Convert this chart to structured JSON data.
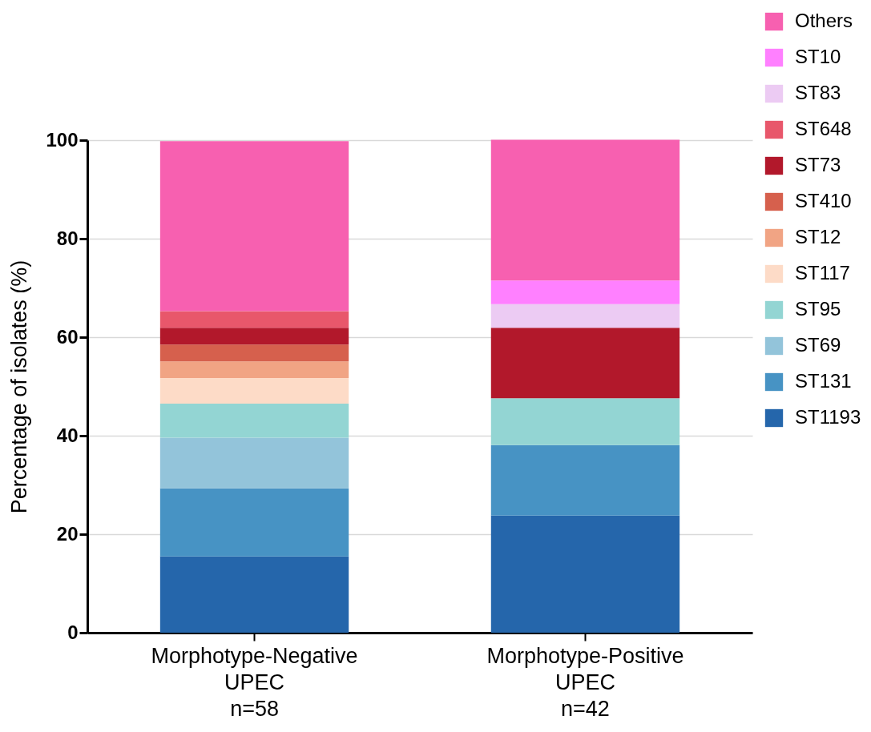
{
  "chart_data": {
    "type": "bar",
    "stacked": true,
    "ylabel": "Percentage of isolates (%)",
    "categories": [
      "Morphotype-Negative\nUPEC\nn=58",
      "Morphotype-Positive\nUPEC\nn=42"
    ],
    "ylim": [
      0,
      100
    ],
    "yticks": [
      0,
      20,
      40,
      60,
      80,
      100
    ],
    "grid": "y",
    "legend": "top right",
    "series": [
      {
        "name": "ST1193",
        "color": "#2566ab",
        "values": [
          15.5,
          23.8
        ]
      },
      {
        "name": "ST131",
        "color": "#4793c4",
        "values": [
          13.8,
          14.3
        ]
      },
      {
        "name": "ST69",
        "color": "#93c4da",
        "values": [
          10.3,
          0
        ]
      },
      {
        "name": "ST95",
        "color": "#93d5d3",
        "values": [
          6.9,
          9.5
        ]
      },
      {
        "name": "ST117",
        "color": "#fddbc7",
        "values": [
          5.2,
          0
        ]
      },
      {
        "name": "ST12",
        "color": "#f1a484",
        "values": [
          3.4,
          0
        ]
      },
      {
        "name": "ST410",
        "color": "#d6604d",
        "values": [
          3.4,
          0
        ]
      },
      {
        "name": "ST73",
        "color": "#b2182b",
        "values": [
          3.4,
          14.3
        ]
      },
      {
        "name": "ST648",
        "color": "#e8576b",
        "values": [
          3.4,
          0
        ]
      },
      {
        "name": "ST83",
        "color": "#eccbf3",
        "values": [
          0,
          4.8
        ]
      },
      {
        "name": "ST10",
        "color": "#ff80ff",
        "values": [
          0,
          4.8
        ]
      },
      {
        "name": "Others",
        "color": "#f760b0",
        "values": [
          34.5,
          28.6
        ]
      }
    ]
  }
}
